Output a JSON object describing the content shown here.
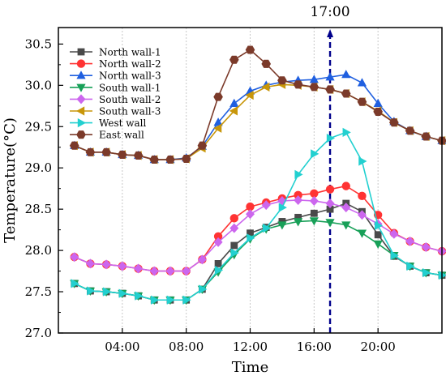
{
  "chart_data": {
    "type": "line",
    "title": "",
    "xlabel": "Time",
    "ylabel": "Temperature(°C)",
    "xlim": [
      0,
      24
    ],
    "ylim": [
      27.0,
      30.7
    ],
    "x_ticks": [
      4,
      8,
      12,
      16,
      20
    ],
    "x_tick_labels": [
      "04:00",
      "08:00",
      "12:00",
      "16:00",
      "20:00"
    ],
    "y_ticks": [
      27.0,
      27.5,
      28.0,
      28.5,
      29.0,
      29.5,
      30.0,
      30.5
    ],
    "y_tick_labels": [
      "27.0",
      "27.5",
      "28.0",
      "28.5",
      "29.0",
      "29.5",
      "30.0",
      "30.5"
    ],
    "grid": "vertical dashed at x ticks",
    "legend_position": "top-left",
    "annotation": {
      "text": "17:00",
      "x": 17,
      "color": "#00008B"
    },
    "x": [
      1,
      2,
      3,
      4,
      5,
      6,
      7,
      8,
      9,
      10,
      11,
      12,
      13,
      14,
      15,
      16,
      17,
      18,
      19,
      20,
      21,
      22,
      23,
      24
    ],
    "series": [
      {
        "name": "North wall-1",
        "color": "#4a4a4a",
        "marker": "square",
        "values": [
          27.6,
          27.51,
          27.5,
          27.48,
          27.45,
          27.4,
          27.4,
          27.4,
          27.53,
          27.84,
          28.06,
          28.21,
          28.28,
          28.35,
          28.4,
          28.45,
          28.5,
          28.57,
          28.47,
          28.19,
          27.93,
          27.81,
          27.73,
          27.7
        ]
      },
      {
        "name": "North wall-2",
        "color": "#ff3333",
        "marker": "circle",
        "values": [
          27.92,
          27.84,
          27.83,
          27.81,
          27.78,
          27.75,
          27.75,
          27.75,
          27.89,
          28.17,
          28.39,
          28.53,
          28.58,
          28.63,
          28.67,
          28.69,
          28.74,
          28.78,
          28.66,
          28.43,
          28.21,
          28.11,
          28.04,
          27.99
        ]
      },
      {
        "name": "North wall-3",
        "color": "#1f5fe0",
        "marker": "triangle-up",
        "values": [
          29.27,
          29.19,
          29.19,
          29.16,
          29.15,
          29.1,
          29.1,
          29.12,
          29.26,
          29.55,
          29.78,
          29.93,
          30.0,
          30.04,
          30.06,
          30.07,
          30.1,
          30.13,
          30.03,
          29.78,
          29.56,
          29.45,
          29.38,
          29.33
        ]
      },
      {
        "name": "South wall-1",
        "color": "#18a058",
        "marker": "triangle-down",
        "values": [
          27.6,
          27.51,
          27.5,
          27.48,
          27.45,
          27.4,
          27.4,
          27.4,
          27.53,
          27.74,
          27.95,
          28.14,
          28.26,
          28.31,
          28.35,
          28.36,
          28.34,
          28.31,
          28.21,
          28.08,
          27.94,
          27.81,
          27.73,
          27.7
        ]
      },
      {
        "name": "South wall-2",
        "color": "#cc66ee",
        "marker": "diamond",
        "values": [
          27.92,
          27.84,
          27.83,
          27.81,
          27.78,
          27.75,
          27.75,
          27.75,
          27.89,
          28.1,
          28.27,
          28.44,
          28.55,
          28.6,
          28.61,
          28.6,
          28.57,
          28.52,
          28.43,
          28.32,
          28.2,
          28.11,
          28.04,
          27.99
        ]
      },
      {
        "name": "South wall-3",
        "color": "#c8960a",
        "marker": "triangle-left",
        "values": [
          29.27,
          29.19,
          29.19,
          29.16,
          29.15,
          29.1,
          29.1,
          29.11,
          29.24,
          29.48,
          29.69,
          29.88,
          29.98,
          30.01,
          30.0,
          29.98,
          29.95,
          29.9,
          29.8,
          29.69,
          29.55,
          29.45,
          29.38,
          29.33
        ]
      },
      {
        "name": "West wall",
        "color": "#22d0d0",
        "marker": "triangle-right",
        "values": [
          27.6,
          27.51,
          27.5,
          27.48,
          27.45,
          27.4,
          27.4,
          27.4,
          27.53,
          27.76,
          27.97,
          28.15,
          28.27,
          28.52,
          28.92,
          29.17,
          29.36,
          29.43,
          29.08,
          28.3,
          27.94,
          27.81,
          27.73,
          27.7
        ]
      },
      {
        "name": "East wall",
        "color": "#7b3a2a",
        "marker": "hexagon",
        "values": [
          29.27,
          29.19,
          29.19,
          29.16,
          29.15,
          29.1,
          29.1,
          29.11,
          29.27,
          29.86,
          30.31,
          30.43,
          30.26,
          30.06,
          30.01,
          29.98,
          29.95,
          29.9,
          29.8,
          29.68,
          29.55,
          29.45,
          29.38,
          29.33
        ]
      }
    ]
  }
}
